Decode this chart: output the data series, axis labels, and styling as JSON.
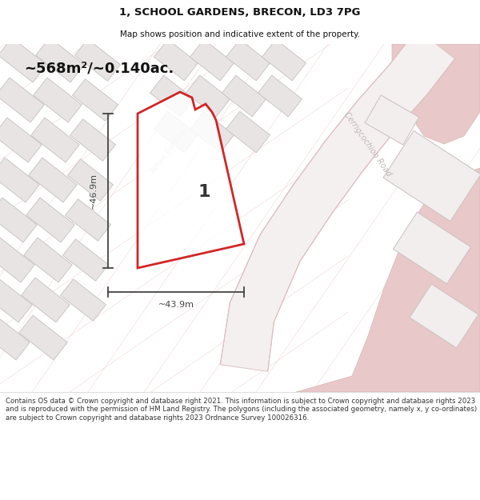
{
  "title": "1, SCHOOL GARDENS, BRECON, LD3 7PG",
  "subtitle": "Map shows position and indicative extent of the property.",
  "area_label": "~568m²/~0.140ac.",
  "dim_horizontal": "~43.9m",
  "dim_vertical": "~46.9m",
  "plot_number": "1",
  "footer": "Contains OS data © Crown copyright and database right 2021. This information is subject to Crown copyright and database rights 2023 and is reproduced with the permission of HM Land Registry. The polygons (including the associated geometry, namely x, y co-ordinates) are subject to Crown copyright and database rights 2023 Ordnance Survey 100026316.",
  "bg_color": "#f7f4f4",
  "building_fill": "#e8e4e4",
  "building_edge": "#c8c0c0",
  "road_outline": "#e8c8c8",
  "road_fill": "#f0e8e8",
  "salmon_fill": "#e8c8c8",
  "plot_color": "#cc0000",
  "plot_fill": "#ffffff",
  "dim_color": "#444444",
  "label_color": "#aaaaaa",
  "street_label_color": "#bbbbbb",
  "title_color": "#111111",
  "footer_color": "#333333"
}
